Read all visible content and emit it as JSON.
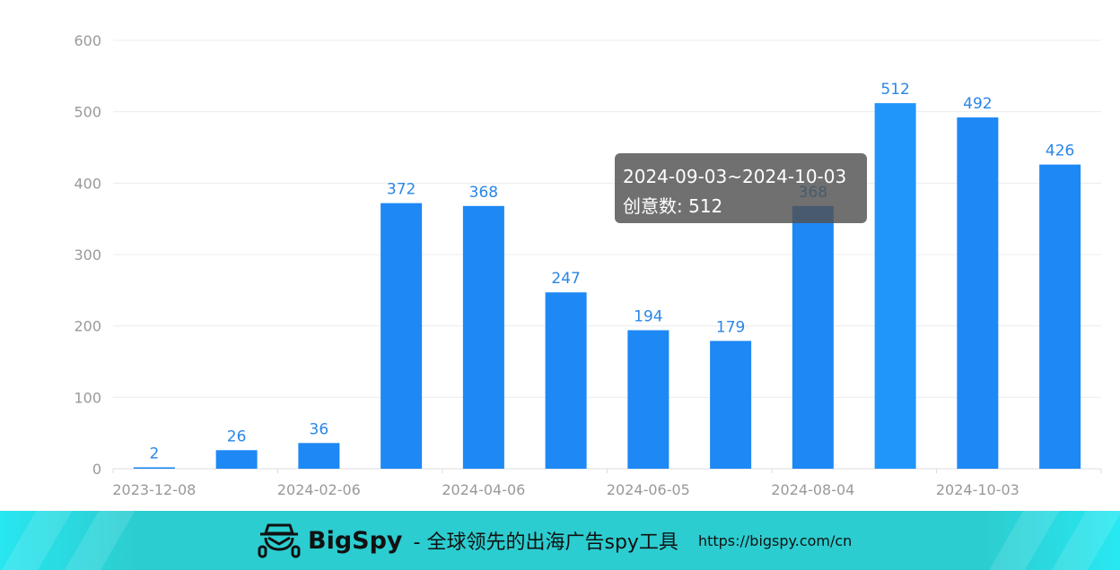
{
  "chart_data": {
    "type": "bar",
    "categories": [
      "2023-12-08",
      "",
      "2024-02-06",
      "",
      "2024-04-06",
      "",
      "2024-06-05",
      "",
      "2024-08-04",
      "",
      "2024-10-03",
      ""
    ],
    "values": [
      2,
      26,
      36,
      372,
      368,
      247,
      194,
      179,
      368,
      512,
      492,
      426
    ],
    "highlighted_index": 9,
    "ylim": [
      0,
      600
    ],
    "yticks": [
      0,
      100,
      200,
      300,
      400,
      500,
      600
    ],
    "grid": true,
    "xlabel": "",
    "ylabel": "",
    "title": "",
    "colors": {
      "bar": "#1e88f5",
      "bar_highlight": "#2196fa",
      "label": "#2a86e6",
      "axis_text": "#999999",
      "grid": "#ececec"
    }
  },
  "tooltip": {
    "range": "2024-09-03~2024-10-03",
    "label": "创意数",
    "value": "512",
    "line2": "创意数: 512"
  },
  "banner": {
    "brand": "BigSpy",
    "slogan": "- 全球领先的出海广告spy工具",
    "url": "https://bigspy.com/cn",
    "icon": "spy-hat-icon"
  }
}
